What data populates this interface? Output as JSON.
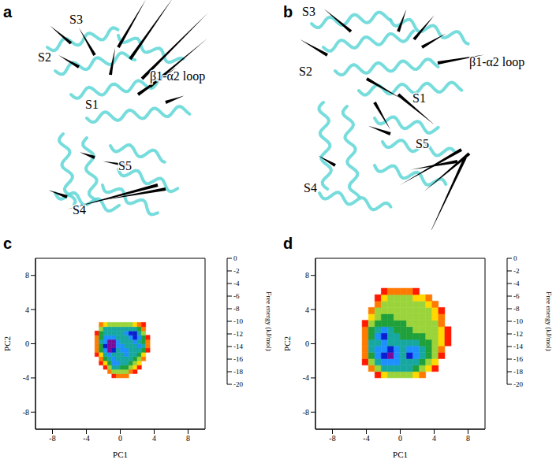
{
  "structures": [
    {
      "panel": "a",
      "labels": [
        "S3",
        "S2",
        "β1-α2 loop",
        "S1",
        "S5",
        "S4"
      ]
    },
    {
      "panel": "b",
      "labels": [
        "S3",
        "S2",
        "β1-α2 loop",
        "S1",
        "S5",
        "S4"
      ]
    }
  ],
  "chart_data": [
    {
      "panel": "c",
      "type": "heatmap",
      "x_label": "PC1",
      "y_label": "PC2",
      "xlim": [
        -10,
        10
      ],
      "ylim": [
        -10,
        10
      ],
      "xticks": [
        -8,
        -4,
        0,
        4,
        8
      ],
      "yticks": [
        -8,
        -4,
        0,
        4,
        8
      ],
      "x_edges": [
        -3,
        -2.5,
        -2,
        -1.5,
        -1,
        -0.5,
        0,
        0.5,
        1,
        1.5,
        2,
        2.5,
        3,
        3.5
      ],
      "y_edges": [
        -4,
        -3.5,
        -3,
        -2.5,
        -2,
        -1.5,
        -1,
        -0.5,
        0,
        0.5,
        1,
        1.5,
        2,
        2.5
      ],
      "z": [
        [
          null,
          null,
          null,
          null,
          -3,
          -4,
          -5,
          -4,
          null,
          null,
          null,
          null,
          null
        ],
        [
          null,
          null,
          null,
          -4,
          -8,
          -9,
          -9,
          -8,
          -5,
          -3,
          null,
          null,
          null
        ],
        [
          null,
          null,
          -3,
          -8,
          -12,
          -13,
          -11,
          -10,
          -9,
          -6,
          -3,
          null,
          null
        ],
        [
          null,
          -3,
          -7,
          -11,
          -14,
          -15,
          -12,
          -12,
          -11,
          -9,
          -6,
          null,
          null
        ],
        [
          null,
          -4,
          -10,
          -12,
          -15,
          -13,
          -12,
          -13,
          -12,
          -11,
          -8,
          -4,
          null
        ],
        [
          -3,
          -7,
          -12,
          -14,
          -13,
          -12,
          -13,
          -15,
          -13,
          -12,
          -11,
          -7,
          null
        ],
        [
          -4,
          -10,
          -15,
          -18,
          -16,
          -13,
          -14,
          -15,
          -13,
          -12,
          -13,
          -10,
          -3
        ],
        [
          -4,
          -11,
          -17,
          -19,
          -19,
          -15,
          -14,
          -13,
          -12,
          -13,
          -15,
          -12,
          -4
        ],
        [
          -5,
          -12,
          -15,
          -19,
          -18,
          -14,
          -13,
          -12,
          -13,
          -14,
          -13,
          -11,
          -4
        ],
        [
          -4,
          -11,
          -14,
          -15,
          -14,
          -13,
          -12,
          -13,
          -15,
          -16,
          -14,
          -10,
          -3
        ],
        [
          -3,
          -10,
          -13,
          -13,
          -12,
          -12,
          -13,
          -14,
          -16,
          -16,
          -13,
          -8,
          null
        ],
        [
          null,
          -8,
          -12,
          -12,
          -12,
          -13,
          -13,
          -12,
          -13,
          -12,
          -10,
          -5,
          null
        ],
        [
          null,
          -4,
          -7,
          -8,
          -8,
          -9,
          -8,
          -8,
          -8,
          -7,
          -5,
          -3,
          null
        ]
      ],
      "colorbar": {
        "label": "Free energy (kJ/mol)",
        "range": [
          -20,
          0
        ],
        "ticks": [
          0,
          -2,
          -4,
          -6,
          -8,
          -10,
          -12,
          -14,
          -16,
          -18,
          -20
        ],
        "colors": [
          "#ffffff",
          "#ff1a00",
          "#ff7a00",
          "#ffd800",
          "#9ad43a",
          "#1fa03a",
          "#16a8a0",
          "#1e8fff",
          "#0b1ed0",
          "#7a0a9a"
        ]
      }
    },
    {
      "panel": "d",
      "type": "heatmap",
      "x_label": "PC1",
      "y_label": "PC2",
      "xlim": [
        -10,
        10
      ],
      "ylim": [
        -10,
        10
      ],
      "xticks": [
        -8,
        -4,
        0,
        4,
        8
      ],
      "yticks": [
        -8,
        -4,
        0,
        4,
        8
      ],
      "x_edges": [
        -4.5,
        -3.75,
        -3,
        -2.25,
        -1.5,
        -0.75,
        0,
        0.75,
        1.5,
        2.25,
        3,
        3.75,
        4.5,
        5.25,
        6
      ],
      "y_edges": [
        -4,
        -3.25,
        -2.5,
        -1.75,
        -1,
        -0.25,
        0.5,
        1.25,
        2,
        2.75,
        3.5,
        4.25,
        5,
        5.75,
        6.5
      ],
      "z": [
        [
          null,
          null,
          -3,
          -6,
          -8,
          -9,
          -9,
          -8,
          -7,
          -5,
          null,
          null,
          null,
          null
        ],
        [
          null,
          -4,
          -9,
          -12,
          -13,
          -13,
          -12,
          -12,
          -10,
          -9,
          -6,
          -3,
          null,
          null
        ],
        [
          -3,
          -8,
          -13,
          -14,
          -15,
          -14,
          -13,
          -13,
          -12,
          -11,
          -9,
          -6,
          null,
          null
        ],
        [
          -4,
          -11,
          -15,
          -16,
          -18,
          -15,
          -13,
          -16,
          -15,
          -12,
          -10,
          -8,
          -3,
          null
        ],
        [
          -5,
          -12,
          -14,
          -15,
          -16,
          -14,
          -13,
          -14,
          -15,
          -12,
          -10,
          -9,
          -5,
          null
        ],
        [
          -5,
          -12,
          -13,
          -14,
          -13,
          -13,
          -12,
          -12,
          -12,
          -11,
          -10,
          -9,
          -6,
          -3
        ],
        [
          -5,
          -11,
          -14,
          -16,
          -13,
          -12,
          -11,
          -11,
          -10,
          -10,
          -9,
          -9,
          -7,
          -3
        ],
        [
          -4,
          -10,
          -13,
          -14,
          -12,
          -11,
          -10,
          -10,
          -9,
          -9,
          -9,
          -9,
          -6,
          -3
        ],
        [
          -3,
          -9,
          -11,
          -11,
          -10,
          -10,
          -10,
          -9,
          -9,
          -9,
          -9,
          -8,
          -5,
          null
        ],
        [
          null,
          -7,
          -9,
          -10,
          -10,
          -9,
          -9,
          -9,
          -9,
          -9,
          -8,
          -7,
          -4,
          null
        ],
        [
          null,
          -4,
          -8,
          -9,
          -9,
          -9,
          -9,
          -9,
          -9,
          -8,
          -8,
          -6,
          -3,
          null
        ],
        [
          null,
          null,
          -5,
          -8,
          -9,
          -9,
          -9,
          -9,
          -8,
          -8,
          -7,
          -4,
          null,
          null
        ],
        [
          null,
          null,
          -3,
          -6,
          -8,
          -8,
          -8,
          -8,
          -7,
          -6,
          -4,
          null,
          null,
          null
        ],
        [
          null,
          null,
          null,
          -3,
          -4,
          -5,
          -5,
          -4,
          -3,
          null,
          null,
          null,
          null,
          null
        ]
      ],
      "colorbar": {
        "label": "Free energy (kJ/mol)",
        "range": [
          -20,
          0
        ],
        "ticks": [
          0,
          -2,
          -4,
          -6,
          -8,
          -10,
          -12,
          -14,
          -16,
          -18,
          -20
        ],
        "colors": [
          "#ffffff",
          "#ff1a00",
          "#ff7a00",
          "#ffd800",
          "#9ad43a",
          "#1fa03a",
          "#16a8a0",
          "#1e8fff",
          "#0b1ed0",
          "#7a0a9a"
        ]
      }
    }
  ]
}
